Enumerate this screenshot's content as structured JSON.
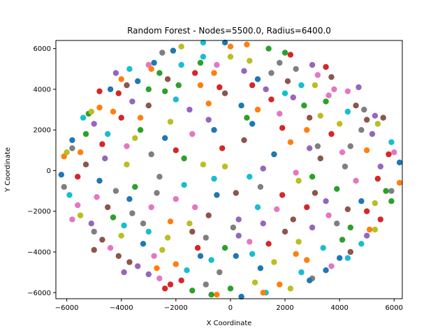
{
  "chart_data": {
    "type": "scatter",
    "title": "Random Forest - Nodes=5500.0, Radius=6400.0",
    "xlabel": "X Coordinate",
    "ylabel": "Y Coordinate",
    "xlim": [
      -6400,
      6300
    ],
    "ylim": [
      -6300,
      6400
    ],
    "xticks": [
      -6000,
      -4000,
      -2000,
      0,
      2000,
      4000,
      6000
    ],
    "yticks": [
      -6000,
      -4000,
      -2000,
      0,
      2000,
      4000,
      6000
    ],
    "xtick_labels": [
      "−6000",
      "−4000",
      "−2000",
      "0",
      "2000",
      "4000",
      "6000"
    ],
    "ytick_labels": [
      "−6000",
      "−4000",
      "−2000",
      "0",
      "2000",
      "4000",
      "6000"
    ],
    "grid": false,
    "legend": "none",
    "palette": [
      "#1f77b4",
      "#ff7f0e",
      "#2ca02c",
      "#d62728",
      "#9467bd",
      "#8c564b",
      "#e377c2",
      "#7f7f7f",
      "#bcbd22",
      "#17becf"
    ],
    "points": [
      [
        -5800,
        1500,
        0
      ],
      [
        -5500,
        900,
        1
      ],
      [
        -5200,
        2800,
        2
      ],
      [
        -4800,
        3900,
        3
      ],
      [
        -4200,
        4800,
        4
      ],
      [
        -3800,
        4200,
        5
      ],
      [
        -3000,
        5200,
        6
      ],
      [
        -2500,
        5800,
        7
      ],
      [
        -1800,
        6100,
        8
      ],
      [
        -1000,
        6300,
        9
      ],
      [
        -200,
        6300,
        0
      ],
      [
        600,
        6200,
        1
      ],
      [
        1400,
        6000,
        2
      ],
      [
        2200,
        5700,
        3
      ],
      [
        3000,
        5200,
        4
      ],
      [
        3700,
        4600,
        5
      ],
      [
        4300,
        3900,
        6
      ],
      [
        4900,
        3000,
        7
      ],
      [
        5400,
        2300,
        8
      ],
      [
        5900,
        1400,
        9
      ],
      [
        6200,
        400,
        0
      ],
      [
        6200,
        -600,
        1
      ],
      [
        5900,
        -1500,
        2
      ],
      [
        5500,
        -2400,
        3
      ],
      [
        5000,
        -3200,
        4
      ],
      [
        4400,
        -4000,
        5
      ],
      [
        3700,
        -4700,
        6
      ],
      [
        3000,
        -5300,
        7
      ],
      [
        2200,
        -5800,
        8
      ],
      [
        1300,
        -6000,
        9
      ],
      [
        400,
        -6200,
        0
      ],
      [
        -500,
        -6100,
        1
      ],
      [
        -1400,
        -5900,
        2
      ],
      [
        -2200,
        -5600,
        3
      ],
      [
        -3000,
        -5100,
        4
      ],
      [
        -3700,
        -4500,
        5
      ],
      [
        -4400,
        -3800,
        6
      ],
      [
        -5000,
        -3000,
        7
      ],
      [
        -5500,
        -2200,
        8
      ],
      [
        -5900,
        -1200,
        9
      ],
      [
        -6200,
        -200,
        0
      ],
      [
        -6100,
        700,
        1
      ],
      [
        -3300,
        2000,
        2
      ],
      [
        -2000,
        1000,
        3
      ],
      [
        -800,
        2500,
        4
      ],
      [
        500,
        1500,
        5
      ],
      [
        1800,
        2800,
        6
      ],
      [
        3200,
        1200,
        7
      ],
      [
        2500,
        -500,
        8
      ],
      [
        1000,
        -1800,
        9
      ],
      [
        -500,
        -1200,
        0
      ],
      [
        -2200,
        -2500,
        1
      ],
      [
        -3500,
        -800,
        2
      ],
      [
        -1200,
        -3800,
        3
      ],
      [
        300,
        -3200,
        4
      ],
      [
        2000,
        -3000,
        5
      ],
      [
        3600,
        -2200,
        6
      ],
      [
        4200,
        200,
        7
      ],
      [
        4000,
        2300,
        8
      ],
      [
        2600,
        4200,
        9
      ],
      [
        1000,
        4500,
        0
      ],
      [
        -600,
        4800,
        1
      ],
      [
        -2400,
        3900,
        2
      ],
      [
        -4000,
        2600,
        3
      ],
      [
        -4600,
        600,
        4
      ],
      [
        -4500,
        -1800,
        5
      ],
      [
        -2800,
        -4200,
        6
      ],
      [
        -400,
        -5000,
        7
      ],
      [
        1600,
        -4500,
        8
      ],
      [
        3400,
        -3800,
        9
      ],
      [
        4800,
        -1500,
        0
      ],
      [
        5000,
        1000,
        1
      ],
      [
        3500,
        3400,
        2
      ],
      [
        1500,
        3500,
        3
      ],
      [
        -1500,
        3000,
        4
      ],
      [
        -3000,
        3200,
        5
      ],
      [
        -3800,
        1200,
        6
      ],
      [
        -2600,
        -300,
        7
      ],
      [
        -1000,
        300,
        8
      ],
      [
        700,
        -300,
        9
      ],
      [
        1600,
        800,
        0
      ],
      [
        2800,
        2000,
        1
      ],
      [
        3900,
        -900,
        2
      ],
      [
        2800,
        -1800,
        3
      ],
      [
        1200,
        -2600,
        4
      ],
      [
        -800,
        -2200,
        5
      ],
      [
        -2000,
        -1400,
        6
      ],
      [
        -3200,
        -2600,
        7
      ],
      [
        -4000,
        -3200,
        8
      ],
      [
        -1600,
        -4900,
        9
      ],
      [
        200,
        -4200,
        0
      ],
      [
        2400,
        -4100,
        1
      ],
      [
        4400,
        -2800,
        2
      ],
      [
        5400,
        -400,
        3
      ],
      [
        5200,
        1800,
        4
      ],
      [
        4600,
        3200,
        5
      ],
      [
        3200,
        4700,
        6
      ],
      [
        1800,
        5300,
        7
      ],
      [
        0,
        5600,
        8
      ],
      [
        -1800,
        5200,
        9
      ],
      [
        -3400,
        4400,
        0
      ],
      [
        -4800,
        3100,
        1
      ],
      [
        -5300,
        1800,
        2
      ],
      [
        -5600,
        -300,
        3
      ],
      [
        -5100,
        -2600,
        4
      ],
      [
        -4100,
        -4200,
        5
      ],
      [
        -2600,
        -5300,
        6
      ],
      [
        -900,
        -5600,
        7
      ],
      [
        900,
        -5500,
        8
      ],
      [
        2600,
        -5000,
        9
      ],
      [
        4000,
        -4300,
        0
      ],
      [
        5100,
        -2900,
        1
      ],
      [
        5700,
        -1000,
        2
      ],
      [
        5800,
        800,
        3
      ],
      [
        5300,
        2700,
        4
      ],
      [
        -200,
        3800,
        5
      ],
      [
        -1400,
        1800,
        6
      ],
      [
        -2900,
        800,
        7
      ],
      [
        -2200,
        2400,
        8
      ],
      [
        -600,
        -400,
        9
      ],
      [
        800,
        2300,
        0
      ],
      [
        2200,
        1400,
        1
      ],
      [
        3000,
        -300,
        2
      ],
      [
        1900,
        -1200,
        3
      ],
      [
        300,
        -2400,
        4
      ],
      [
        -1400,
        -3000,
        5
      ],
      [
        -2900,
        -1800,
        6
      ],
      [
        -4200,
        -1000,
        7
      ],
      [
        -3800,
        300,
        8
      ],
      [
        -4500,
        1800,
        9
      ],
      [
        -3200,
        -3600,
        0
      ],
      [
        -2000,
        -4600,
        1
      ],
      [
        -200,
        -3800,
        2
      ],
      [
        1400,
        -3600,
        3
      ],
      [
        3000,
        -2800,
        4
      ],
      [
        4300,
        -1900,
        5
      ],
      [
        4600,
        -500,
        6
      ],
      [
        4400,
        1200,
        7
      ],
      [
        3300,
        2700,
        8
      ],
      [
        2000,
        3800,
        9
      ],
      [
        400,
        3200,
        0
      ],
      [
        -1100,
        4200,
        1
      ],
      [
        -2600,
        4800,
        2
      ],
      [
        -4100,
        3800,
        3
      ],
      [
        -5000,
        2300,
        4
      ],
      [
        -5300,
        300,
        5
      ],
      [
        -4900,
        -1300,
        6
      ],
      [
        -3600,
        -2100,
        7
      ],
      [
        -2300,
        -3300,
        8
      ],
      [
        -700,
        -4400,
        9
      ],
      [
        1100,
        -4800,
        0
      ],
      [
        2800,
        -4400,
        1
      ],
      [
        4100,
        -3400,
        2
      ],
      [
        5000,
        -2000,
        3
      ],
      [
        5500,
        200,
        4
      ],
      [
        5000,
        2500,
        5
      ],
      [
        3800,
        4000,
        6
      ],
      [
        2400,
        5000,
        7
      ],
      [
        700,
        5400,
        8
      ],
      [
        -1000,
        5600,
        9
      ],
      [
        -2800,
        5300,
        0
      ],
      [
        -4000,
        4500,
        1
      ],
      [
        -1700,
        600,
        2
      ],
      [
        -300,
        1100,
        3
      ],
      [
        1200,
        100,
        4
      ],
      [
        200,
        -1100,
        5
      ],
      [
        -1300,
        -1800,
        6
      ],
      [
        -2700,
        -1100,
        7
      ],
      [
        -3500,
        1600,
        8
      ],
      [
        -2000,
        3500,
        9
      ],
      [
        -600,
        2000,
        0
      ],
      [
        1000,
        3000,
        1
      ],
      [
        2700,
        3200,
        2
      ],
      [
        3700,
        1800,
        3
      ],
      [
        3500,
        -1500,
        4
      ],
      [
        2300,
        -2400,
        5
      ],
      [
        700,
        -3500,
        6
      ],
      [
        -900,
        -3300,
        7
      ],
      [
        -2500,
        -3900,
        8
      ],
      [
        -3900,
        -2700,
        9
      ],
      [
        -4800,
        -500,
        0
      ],
      [
        -4300,
        2900,
        1
      ],
      [
        -3000,
        4000,
        2
      ],
      [
        -1300,
        4800,
        3
      ],
      [
        500,
        4900,
        4
      ],
      [
        2100,
        4400,
        5
      ],
      [
        3600,
        3700,
        6
      ],
      [
        4800,
        2000,
        7
      ],
      [
        5300,
        -1600,
        8
      ],
      [
        4800,
        -3600,
        9
      ],
      [
        3500,
        -4900,
        0
      ],
      [
        1800,
        -5600,
        1
      ],
      [
        0,
        -5800,
        2
      ],
      [
        -1800,
        -5400,
        3
      ],
      [
        -3400,
        -4700,
        4
      ],
      [
        -4700,
        -3400,
        5
      ],
      [
        -5600,
        -1700,
        6
      ],
      [
        -5800,
        1100,
        7
      ],
      [
        -5100,
        2900,
        8
      ],
      [
        -3700,
        5000,
        9
      ],
      [
        -2100,
        5900,
        0
      ],
      [
        0,
        6100,
        1
      ],
      [
        2000,
        5800,
        2
      ],
      [
        3500,
        5100,
        3
      ],
      [
        4700,
        4100,
        4
      ],
      [
        5600,
        2600,
        5
      ],
      [
        6000,
        900,
        6
      ],
      [
        5900,
        -1000,
        7
      ],
      [
        5300,
        -2900,
        8
      ],
      [
        4300,
        -4300,
        9
      ],
      [
        2900,
        -5400,
        0
      ],
      [
        1200,
        -6000,
        1
      ],
      [
        -700,
        -6100,
        2
      ],
      [
        -2400,
        -5800,
        3
      ],
      [
        -3900,
        -5000,
        4
      ],
      [
        -5000,
        -3900,
        5
      ],
      [
        -5800,
        -2400,
        6
      ],
      [
        -6100,
        -800,
        7
      ],
      [
        -6000,
        900,
        8
      ],
      [
        -5400,
        2600,
        9
      ],
      [
        -4400,
        4000,
        0
      ],
      [
        -2900,
        5000,
        1
      ],
      [
        -1100,
        5300,
        2
      ],
      [
        800,
        4200,
        3
      ],
      [
        2300,
        3600,
        4
      ],
      [
        3300,
        600,
        5
      ],
      [
        2400,
        -100,
        6
      ],
      [
        1100,
        -800,
        7
      ],
      [
        -200,
        200,
        8
      ],
      [
        -1700,
        -700,
        9
      ],
      [
        -2400,
        1600,
        0
      ],
      [
        -800,
        3300,
        1
      ],
      [
        600,
        2600,
        2
      ],
      [
        1900,
        2100,
        3
      ],
      [
        2900,
        1100,
        4
      ],
      [
        3100,
        -1100,
        5
      ],
      [
        1700,
        -1900,
        6
      ],
      [
        100,
        -2800,
        7
      ],
      [
        -1500,
        -2600,
        8
      ],
      [
        -3000,
        -3000,
        9
      ],
      [
        -3700,
        -1400,
        0
      ],
      [
        -3300,
        2600,
        1
      ],
      [
        -1900,
        4200,
        2
      ],
      [
        -400,
        4100,
        3
      ],
      [
        1300,
        4000,
        4
      ],
      [
        2900,
        2600,
        5
      ],
      [
        4100,
        900,
        6
      ],
      [
        3900,
        -2600,
        7
      ],
      [
        2500,
        -3500,
        8
      ],
      [
        800,
        -4100,
        9
      ],
      [
        -1100,
        -4200,
        0
      ],
      [
        -2700,
        -4800,
        1
      ],
      [
        -4300,
        -2300,
        2
      ],
      [
        -4700,
        1300,
        3
      ],
      [
        -3600,
        3400,
        4
      ],
      [
        -2300,
        4500,
        5
      ],
      [
        -500,
        5200,
        6
      ],
      [
        1500,
        4800,
        7
      ],
      [
        3100,
        4200,
        8
      ],
      [
        4300,
        2900,
        9
      ]
    ]
  }
}
